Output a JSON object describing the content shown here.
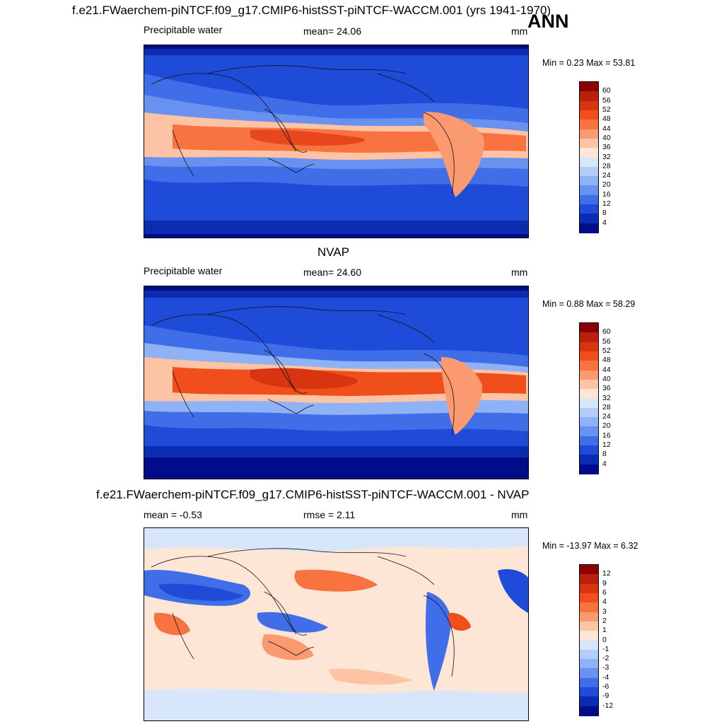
{
  "header": {
    "title": "f.e21.FWaerchem-piNTCF.f09_g17.CMIP6-histSST-piNTCF-WACCM.001 (yrs 1941-1970)",
    "season": "ANN"
  },
  "panels": [
    {
      "id": "model",
      "left_label": "Precipitable water",
      "center_label": "mean=  24.06",
      "right_label": "mm",
      "minmax": "Min =   0.23 Max =  53.81",
      "colorbar_labels": [
        "60",
        "56",
        "52",
        "48",
        "44",
        "40",
        "36",
        "32",
        "28",
        "24",
        "20",
        "16",
        "12",
        "8",
        "4"
      ],
      "colorbar_colors": [
        "#8b0000",
        "#b8210b",
        "#d83410",
        "#f04f1c",
        "#f97340",
        "#fb9a70",
        "#fcc3a5",
        "#fde6d6",
        "#d7e6fb",
        "#b3cdf8",
        "#8fb1f5",
        "#6991f0",
        "#3f6ee8",
        "#1e4bd8",
        "#0b2cb0",
        "#000c8a"
      ]
    },
    {
      "id": "obs",
      "title": "NVAP",
      "left_label": "Precipitable water",
      "center_label": "mean=  24.60",
      "right_label": "mm",
      "minmax": "Min =   0.88 Max =  58.29",
      "colorbar_labels": [
        "60",
        "56",
        "52",
        "48",
        "44",
        "40",
        "36",
        "32",
        "28",
        "24",
        "20",
        "16",
        "12",
        "8",
        "4"
      ],
      "colorbar_colors": [
        "#8b0000",
        "#b8210b",
        "#d83410",
        "#f04f1c",
        "#f97340",
        "#fb9a70",
        "#fcc3a5",
        "#fde6d6",
        "#d7e6fb",
        "#b3cdf8",
        "#8fb1f5",
        "#6991f0",
        "#3f6ee8",
        "#1e4bd8",
        "#0b2cb0",
        "#000c8a"
      ]
    },
    {
      "id": "diff",
      "title": "f.e21.FWaerchem-piNTCF.f09_g17.CMIP6-histSST-piNTCF-WACCM.001 - NVAP",
      "left_label": "mean =  -0.53",
      "center_label": "rmse =    2.11",
      "right_label": "mm",
      "minmax": "Min = -13.97 Max =   6.32",
      "colorbar_labels": [
        "12",
        "9",
        "6",
        "4",
        "3",
        "2",
        "1",
        "0",
        "-1",
        "-2",
        "-3",
        "-4",
        "-6",
        "-9",
        "-12"
      ],
      "colorbar_colors": [
        "#8b0000",
        "#b8210b",
        "#d83410",
        "#f04f1c",
        "#f97340",
        "#fb9a70",
        "#fcc3a5",
        "#fde6d6",
        "#d7e6fb",
        "#b3cdf8",
        "#8fb1f5",
        "#6991f0",
        "#3f6ee8",
        "#1e4bd8",
        "#0b2cb0",
        "#000c8a"
      ]
    }
  ],
  "colors": {
    "polar": "#000c8a",
    "tropics": "#e8461c",
    "diff_background": "#fde6d6"
  }
}
